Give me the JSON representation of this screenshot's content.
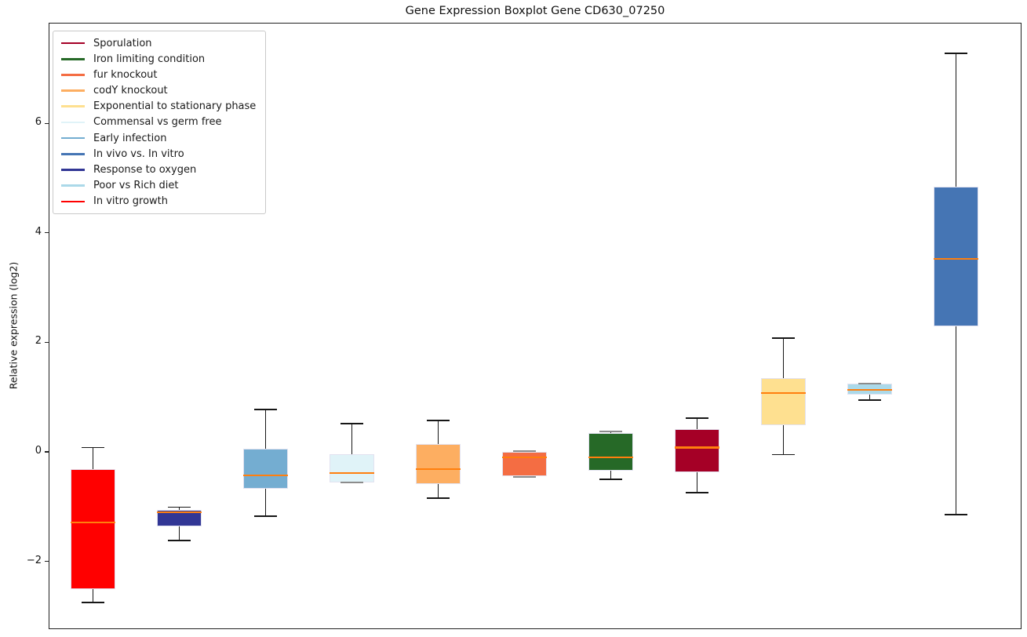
{
  "title": "Gene Expression Boxplot Gene CD630_07250",
  "y_axis": {
    "label": "Relative expression (log2)",
    "ticks": [
      6,
      4,
      2,
      0,
      -2
    ],
    "ylim": [
      -3.25,
      7.83
    ]
  },
  "colors": {
    "median_line": "#FF7F0E",
    "whisker": "#161616",
    "box_edge": "#E2E2F0",
    "flush_cap": "#8C8C8C",
    "axis_frame": "#202020"
  },
  "legend": {
    "items": [
      {
        "label": "Sporulation",
        "color": "#A50026"
      },
      {
        "label": "Iron limiting condition",
        "color": "#266927"
      },
      {
        "label": "fur knockout",
        "color": "#F46D43"
      },
      {
        "label": "codY knockout",
        "color": "#FDAE61"
      },
      {
        "label": "Exponential to stationary phase",
        "color": "#FEE090"
      },
      {
        "label": "Commensal vs germ free",
        "color": "#E0F3F8"
      },
      {
        "label": "Early infection",
        "color": "#74ADD1"
      },
      {
        "label": "In vivo vs. In vitro",
        "color": "#4575B4"
      },
      {
        "label": "Response to oxygen",
        "color": "#313695"
      },
      {
        "label": "Poor vs Rich diet",
        "color": "#ABD9E9"
      },
      {
        "label": "In vitro growth",
        "color": "#FF0000"
      }
    ]
  },
  "chart_data": {
    "type": "boxplot",
    "title": "Gene Expression Boxplot Gene CD630_07250",
    "xlabel": "",
    "ylabel": "Relative expression (log2)",
    "ylim": [
      -3.25,
      7.83
    ],
    "grid": false,
    "legend_position": "upper left",
    "series": [
      {
        "name": "In vitro growth",
        "color": "#FF0000",
        "whislo": -2.75,
        "q1": -2.51,
        "med": -1.29,
        "q3": -0.31,
        "whishi": 0.08
      },
      {
        "name": "Response to oxygen",
        "color": "#313695",
        "whislo": -1.62,
        "q1": -1.36,
        "med": -1.1,
        "q3": -1.06,
        "whishi": -1.01
      },
      {
        "name": "Early infection",
        "color": "#74ADD1",
        "whislo": -1.17,
        "q1": -0.68,
        "med": -0.43,
        "q3": 0.06,
        "whishi": 0.77
      },
      {
        "name": "Commensal vs germ free",
        "color": "#E0F3F8",
        "whislo": -0.56,
        "q1": -0.56,
        "med": -0.39,
        "q3": -0.05,
        "whishi": 0.52
      },
      {
        "name": "codY knockout",
        "color": "#FDAE61",
        "whislo": -0.84,
        "q1": -0.59,
        "med": -0.31,
        "q3": 0.15,
        "whishi": 0.57
      },
      {
        "name": "fur knockout",
        "color": "#F46D43",
        "whislo": -0.46,
        "q1": -0.45,
        "med": -0.1,
        "q3": 0.0,
        "whishi": 0.01
      },
      {
        "name": "Iron limiting condition",
        "color": "#266927",
        "whislo": -0.5,
        "q1": -0.35,
        "med": -0.1,
        "q3": 0.35,
        "whishi": 0.37
      },
      {
        "name": "Sporulation",
        "color": "#A50026",
        "whislo": -0.75,
        "q1": -0.37,
        "med": 0.08,
        "q3": 0.41,
        "whishi": 0.62
      },
      {
        "name": "Exponential to stationary phase",
        "color": "#FEE090",
        "whislo": -0.05,
        "q1": 0.49,
        "med": 1.07,
        "q3": 1.34,
        "whishi": 2.08
      },
      {
        "name": "Poor vs Rich diet",
        "color": "#ABD9E9",
        "whislo": 0.94,
        "q1": 1.05,
        "med": 1.13,
        "q3": 1.24,
        "whishi": 1.25
      },
      {
        "name": "In vivo vs. In vitro",
        "color": "#4575B4",
        "whislo": -1.15,
        "q1": 2.29,
        "med": 3.52,
        "q3": 4.84,
        "whishi": 7.28
      }
    ]
  }
}
